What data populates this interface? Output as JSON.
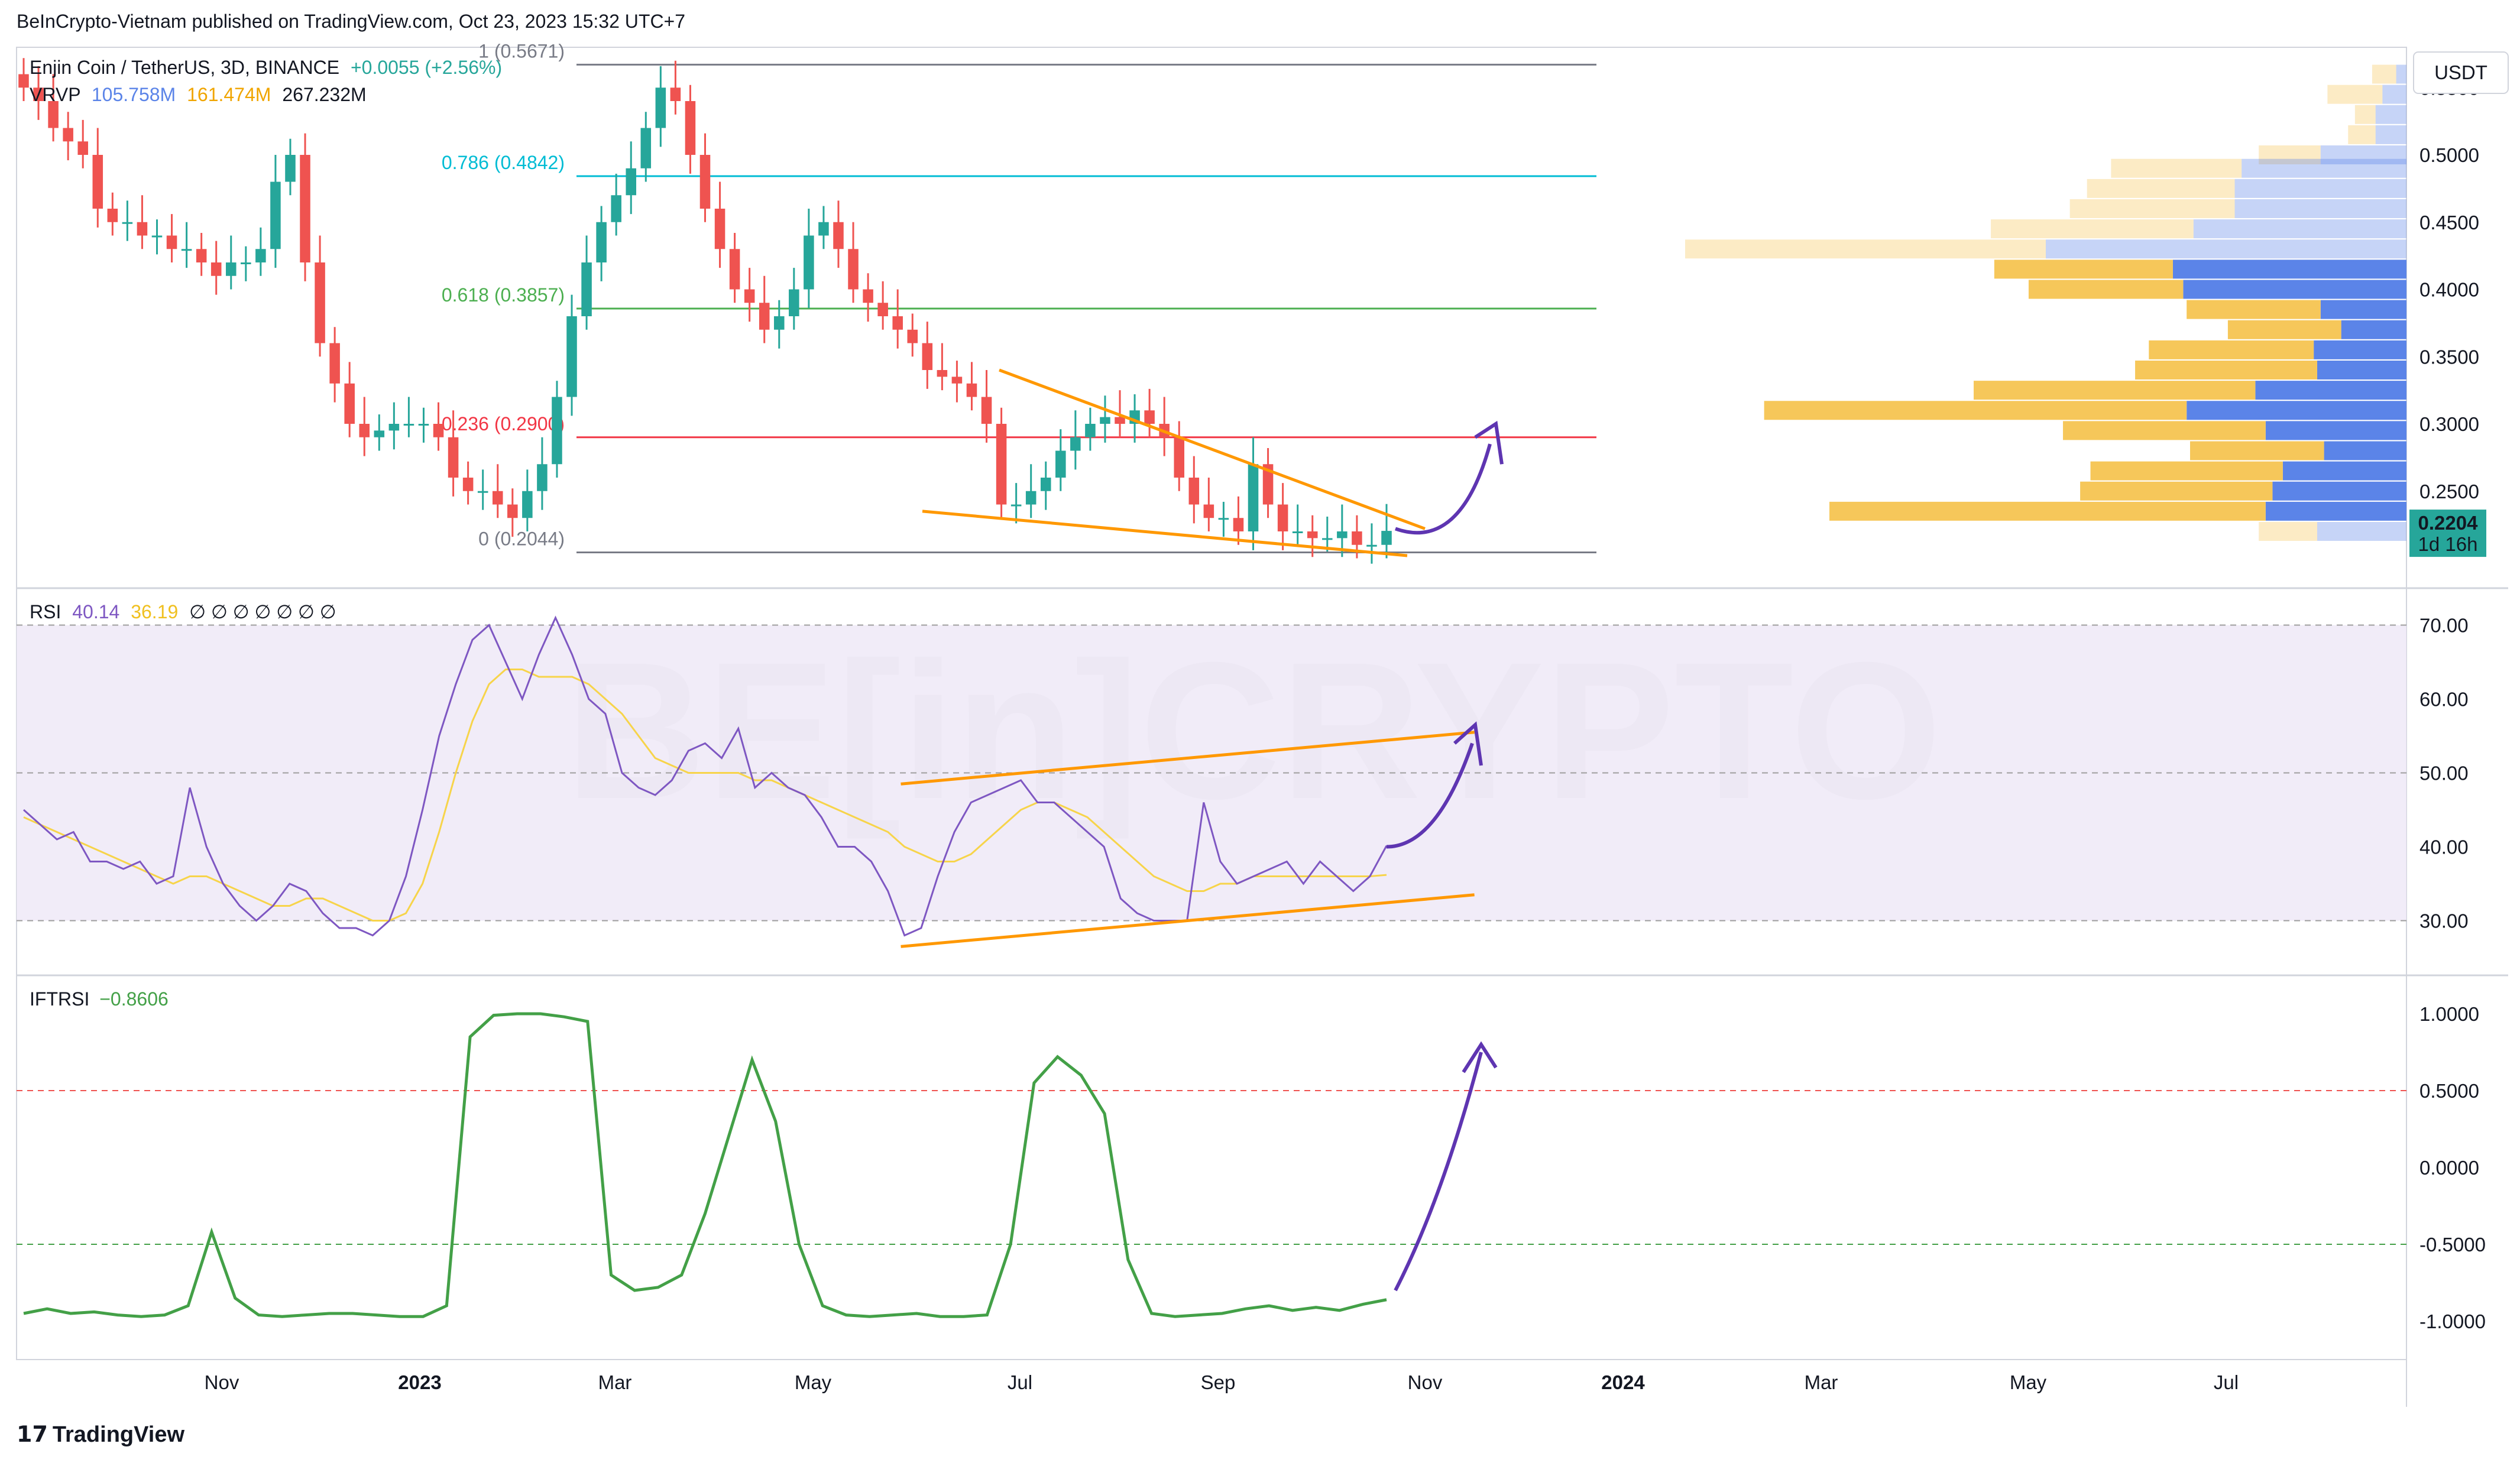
{
  "header": {
    "published": "BeInCrypto-Vietnam published on TradingView.com, Oct 23, 2023 15:32 UTC+7",
    "symbol": "Enjin Coin / TetherUS, 3D, BINANCE",
    "change": "+0.0055 (+2.56%)",
    "vrvp_label": "VRVP",
    "vrvp_up": "105.758M",
    "vrvp_down": "161.474M",
    "vrvp_total": "267.232M",
    "rsi_label": "RSI",
    "rsi_value": "40.14",
    "rsi_ma": "36.19",
    "rsi_extra": "∅ ∅ ∅ ∅ ∅ ∅ ∅",
    "iftrsi_label": "IFTRSI",
    "iftrsi_value": "−0.8606"
  },
  "footer": {
    "brand": "TradingView",
    "logo": "tv-logo-icon"
  },
  "watermark": "BE[in]CRYPTO",
  "colors": {
    "up": "#26a69a",
    "down": "#ef5350",
    "rsi": "#7e57c2",
    "rsi_ma": "#f7d44a",
    "rsi_band": "#ede7f6",
    "iftrsi": "#43a047",
    "trend": "#ff9800",
    "arrow": "#5e35b1",
    "price_tag": "#26a69a",
    "vp_up": "#5b84e8",
    "vp_down": "#f6c75a"
  },
  "chart_data": [
    {
      "type": "candlestick",
      "pair": "ENJ/USDT",
      "timeframe": "3D",
      "y_unit": "USDT",
      "ylim": [
        0.18,
        0.58
      ],
      "y_ticks": [
        "0.5500",
        "0.5000",
        "0.4500",
        "0.4000",
        "0.3500",
        "0.3000",
        "0.2500"
      ],
      "x_ticks": [
        "Nov",
        "2023",
        "Mar",
        "May",
        "Jul",
        "Sep",
        "Nov",
        "2024",
        "Mar",
        "May",
        "Jul"
      ],
      "last_price": "0.2204",
      "countdown": "1d 16h",
      "fib_levels": [
        {
          "label": "1 (0.5671)",
          "value": 0.5671
        },
        {
          "label": "0.786 (0.4842)",
          "value": 0.4842
        },
        {
          "label": "0.618 (0.3857)",
          "value": 0.3857
        },
        {
          "label": "0.236 (0.2900)",
          "value": 0.29
        },
        {
          "label": "0 (0.2044)",
          "value": 0.2044
        }
      ],
      "close_series": [
        0.55,
        0.54,
        0.52,
        0.51,
        0.5,
        0.46,
        0.45,
        0.45,
        0.44,
        0.44,
        0.43,
        0.43,
        0.42,
        0.41,
        0.42,
        0.42,
        0.43,
        0.48,
        0.5,
        0.42,
        0.36,
        0.33,
        0.3,
        0.29,
        0.295,
        0.3,
        0.3,
        0.3,
        0.29,
        0.26,
        0.25,
        0.25,
        0.24,
        0.23,
        0.25,
        0.27,
        0.32,
        0.38,
        0.42,
        0.45,
        0.47,
        0.49,
        0.52,
        0.55,
        0.54,
        0.5,
        0.46,
        0.43,
        0.4,
        0.39,
        0.37,
        0.38,
        0.4,
        0.44,
        0.45,
        0.43,
        0.4,
        0.39,
        0.38,
        0.37,
        0.36,
        0.34,
        0.335,
        0.33,
        0.32,
        0.3,
        0.24,
        0.24,
        0.25,
        0.26,
        0.28,
        0.29,
        0.3,
        0.305,
        0.3,
        0.31,
        0.3,
        0.29,
        0.26,
        0.24,
        0.23,
        0.23,
        0.22,
        0.27,
        0.24,
        0.22,
        0.22,
        0.215,
        0.215,
        0.22,
        0.21,
        0.21,
        0.2204
      ],
      "volume_profile": [
        {
          "price": 0.56,
          "up": 30,
          "down": 70
        },
        {
          "price": 0.545,
          "up": 70,
          "down": 160
        },
        {
          "price": 0.53,
          "up": 90,
          "down": 60
        },
        {
          "price": 0.515,
          "up": 90,
          "down": 80
        },
        {
          "price": 0.5,
          "up": 250,
          "down": 180
        },
        {
          "price": 0.49,
          "up": 480,
          "down": 380
        },
        {
          "price": 0.475,
          "up": 500,
          "down": 430
        },
        {
          "price": 0.46,
          "up": 500,
          "down": 480
        },
        {
          "price": 0.445,
          "up": 620,
          "down": 590
        },
        {
          "price": 0.43,
          "up": 1050,
          "down": 1050
        },
        {
          "price": 0.415,
          "up": 680,
          "down": 520
        },
        {
          "price": 0.4,
          "up": 650,
          "down": 450
        },
        {
          "price": 0.385,
          "up": 250,
          "down": 390
        },
        {
          "price": 0.37,
          "up": 190,
          "down": 330
        },
        {
          "price": 0.355,
          "up": 270,
          "down": 480
        },
        {
          "price": 0.34,
          "up": 260,
          "down": 530
        },
        {
          "price": 0.325,
          "up": 440,
          "down": 820
        },
        {
          "price": 0.31,
          "up": 640,
          "down": 1230
        },
        {
          "price": 0.295,
          "up": 410,
          "down": 590
        },
        {
          "price": 0.28,
          "up": 240,
          "down": 390
        },
        {
          "price": 0.265,
          "up": 360,
          "down": 560
        },
        {
          "price": 0.25,
          "up": 390,
          "down": 560
        },
        {
          "price": 0.235,
          "up": 410,
          "down": 1270
        },
        {
          "price": 0.22,
          "up": 260,
          "down": 170
        }
      ]
    },
    {
      "type": "line",
      "name": "RSI",
      "ylim": [
        23,
        75
      ],
      "y_ticks": [
        "70.00",
        "60.00",
        "50.00",
        "40.00",
        "30.00"
      ],
      "band": [
        30,
        70
      ],
      "midline": 50,
      "rsi": [
        45,
        43,
        41,
        42,
        38,
        38,
        37,
        38,
        35,
        36,
        48,
        40,
        35,
        32,
        30,
        32,
        35,
        34,
        31,
        29,
        29,
        28,
        30,
        36,
        45,
        55,
        62,
        68,
        70,
        65,
        60,
        66,
        71,
        66,
        60,
        58,
        50,
        48,
        47,
        49,
        53,
        54,
        52,
        56,
        48,
        50,
        48,
        47,
        44,
        40,
        40,
        38,
        34,
        28,
        29,
        36,
        42,
        46,
        47,
        48,
        49,
        46,
        46,
        44,
        42,
        40,
        33,
        31,
        30,
        30,
        30,
        46,
        38,
        35,
        36,
        37,
        38,
        35,
        38,
        36,
        34,
        36,
        40.14
      ],
      "rsi_ma": [
        44,
        43,
        42,
        41,
        40,
        39,
        38,
        37,
        36,
        35,
        36,
        36,
        35,
        34,
        33,
        32,
        32,
        33,
        33,
        32,
        31,
        30,
        30,
        31,
        35,
        42,
        50,
        57,
        62,
        64,
        64,
        63,
        63,
        63,
        62,
        60,
        58,
        55,
        52,
        51,
        50,
        50,
        50,
        50,
        49,
        49,
        48,
        47,
        46,
        45,
        44,
        43,
        42,
        40,
        39,
        38,
        38,
        39,
        41,
        43,
        45,
        46,
        46,
        45,
        44,
        42,
        40,
        38,
        36,
        35,
        34,
        34,
        35,
        35,
        36,
        36,
        36,
        36,
        36,
        36,
        36,
        36,
        36.19
      ],
      "trendline_upper": [
        [
          0.37,
          48.5
        ],
        [
          0.61,
          55.5
        ]
      ],
      "trendline_lower": [
        [
          0.37,
          26.5
        ],
        [
          0.61,
          33.5
        ]
      ]
    },
    {
      "type": "line",
      "name": "IFTRSI",
      "ylim": [
        -1.25,
        1.25
      ],
      "y_ticks": [
        "1.0000",
        "0.5000",
        "0.0000",
        "-0.5000",
        "-1.0000"
      ],
      "levels": [
        0.5,
        -0.5
      ],
      "values": [
        -0.95,
        -0.92,
        -0.95,
        -0.94,
        -0.96,
        -0.97,
        -0.96,
        -0.9,
        -0.42,
        -0.85,
        -0.96,
        -0.97,
        -0.96,
        -0.95,
        -0.95,
        -0.96,
        -0.97,
        -0.97,
        -0.9,
        0.85,
        0.99,
        1.0,
        1.0,
        0.98,
        0.95,
        -0.7,
        -0.8,
        -0.78,
        -0.7,
        -0.3,
        0.2,
        0.7,
        0.3,
        -0.5,
        -0.9,
        -0.96,
        -0.97,
        -0.96,
        -0.95,
        -0.97,
        -0.97,
        -0.96,
        -0.5,
        0.55,
        0.72,
        0.6,
        0.35,
        -0.6,
        -0.95,
        -0.97,
        -0.96,
        -0.95,
        -0.92,
        -0.9,
        -0.93,
        -0.91,
        -0.93,
        -0.89,
        -0.8606
      ]
    }
  ]
}
